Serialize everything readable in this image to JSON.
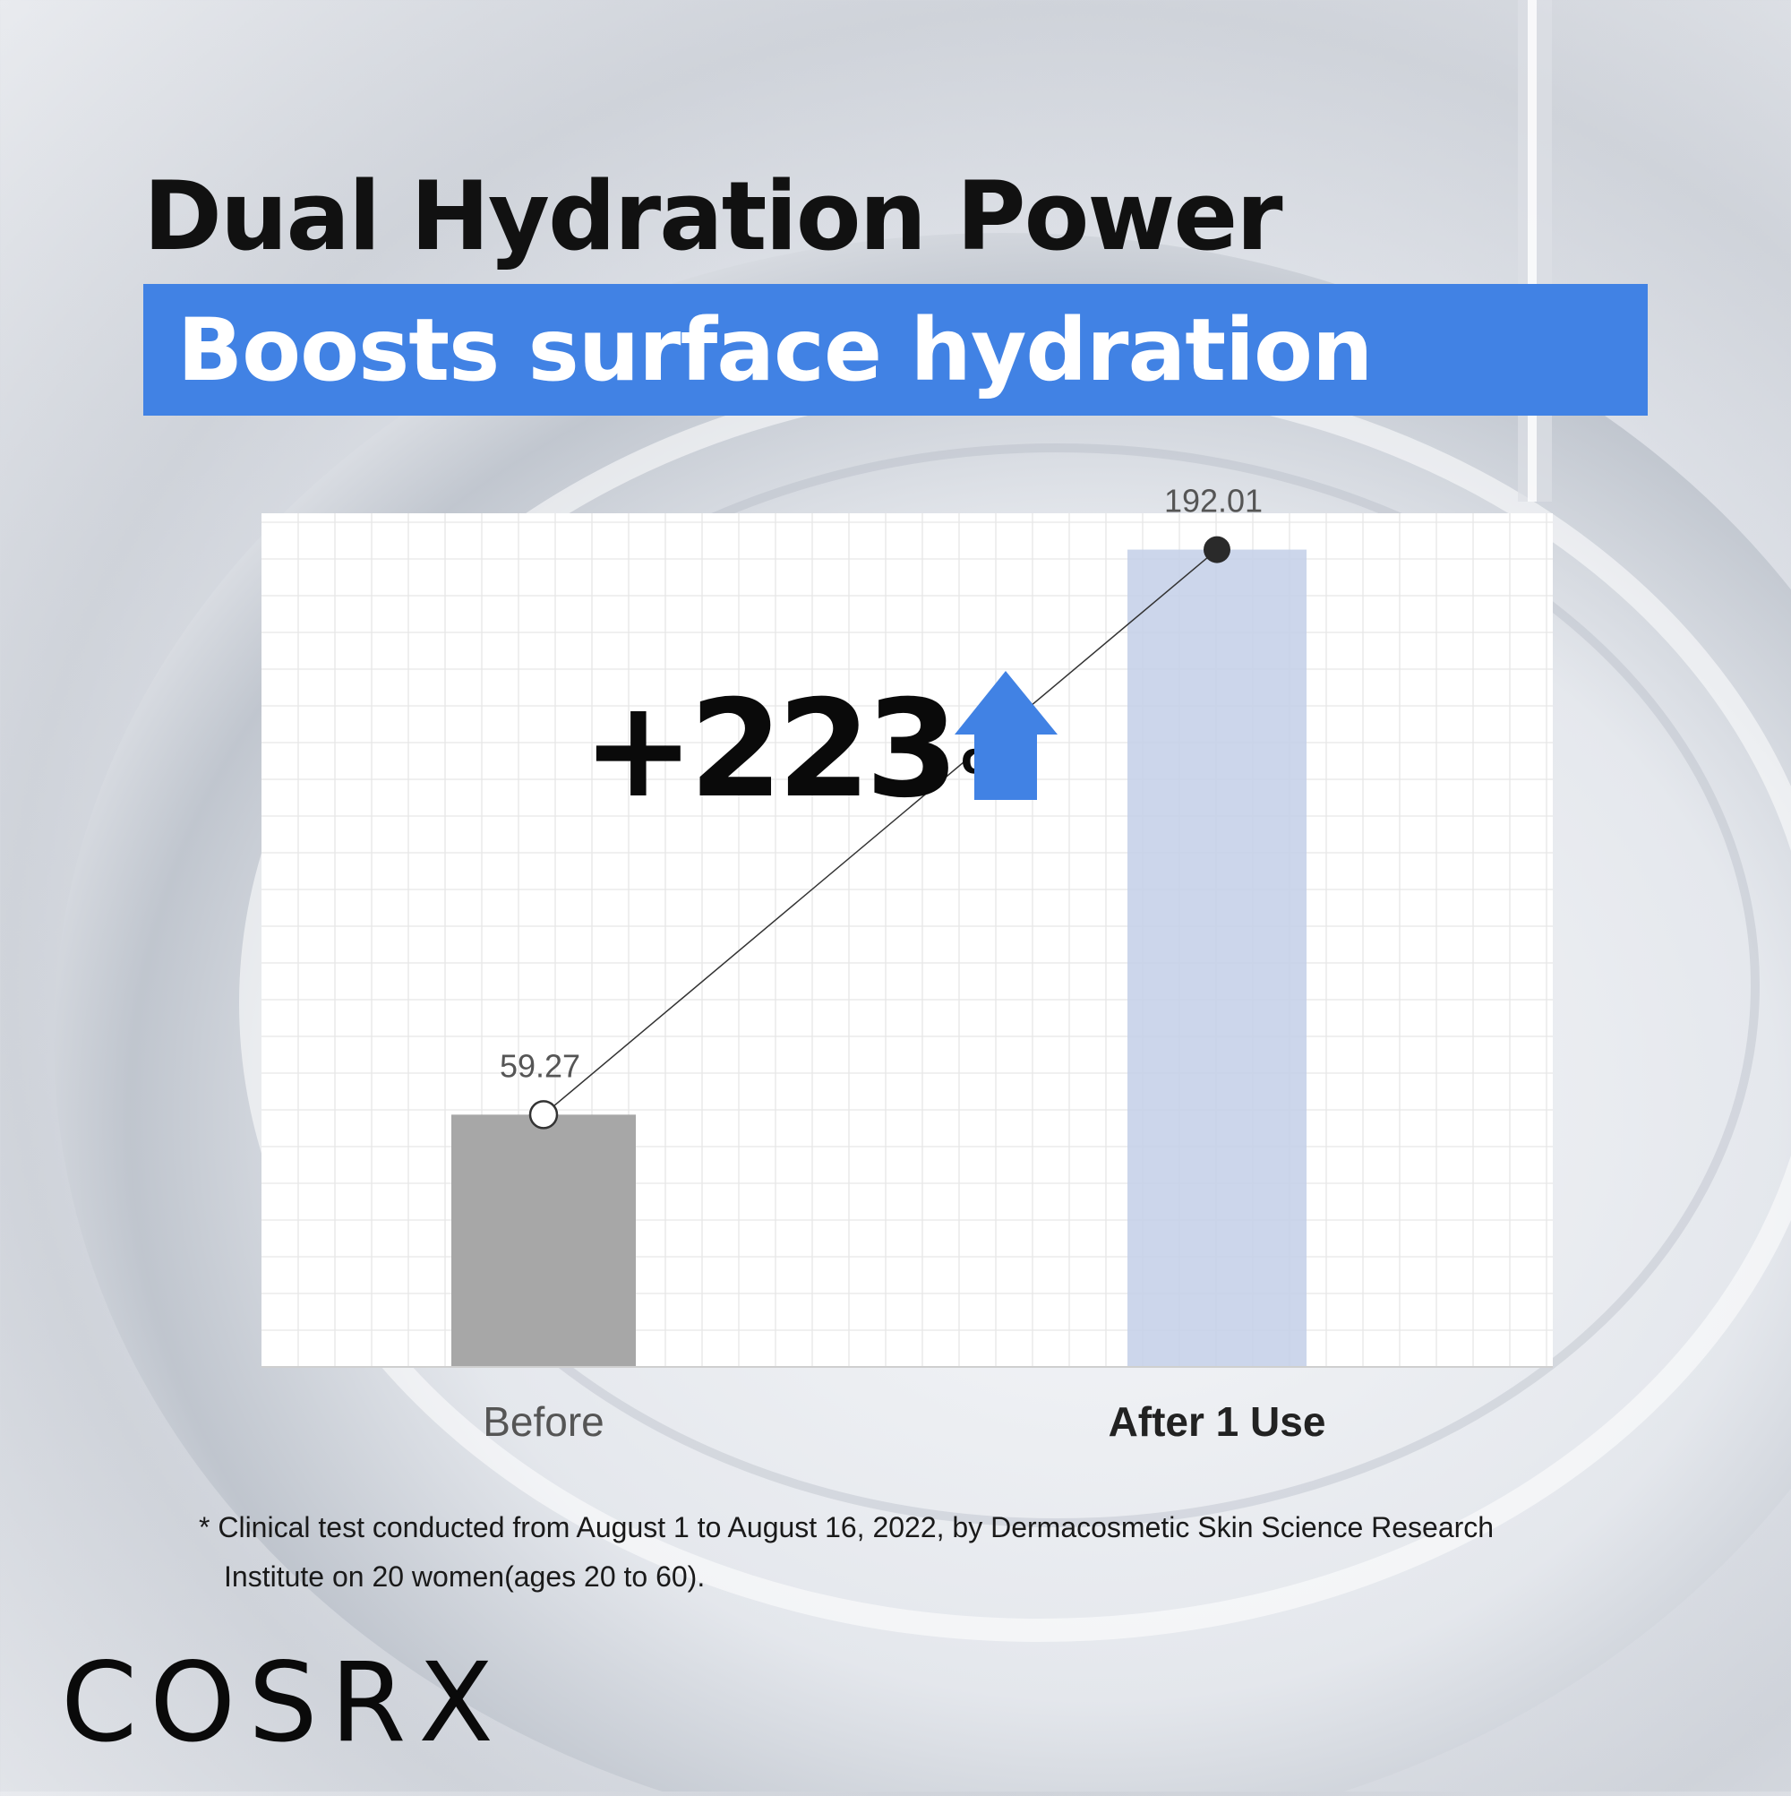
{
  "header": {
    "title": "Dual Hydration Power",
    "subtitle": "Boosts surface hydration"
  },
  "chart_data": {
    "type": "bar",
    "categories": [
      "Before",
      "After 1 Use"
    ],
    "values": [
      59.27,
      192.01
    ],
    "data_labels": [
      "59.27",
      "192.01"
    ],
    "annotation": {
      "value": "+223",
      "unit": "%"
    },
    "ylim": [
      0,
      250
    ],
    "grid": true,
    "bar_colors": [
      "#a7a7a7",
      "#c3cfe8"
    ],
    "arrow_color": "#4182e4",
    "connector": "line-between-values"
  },
  "footnote": {
    "line1": "* Clinical test conducted from August 1 to August 16, 2022, by Dermacosmetic Skin Science Research",
    "line2": "Institute on 20 women(ages 20 to 60)."
  },
  "brand": {
    "logo_text": "COSRX"
  }
}
